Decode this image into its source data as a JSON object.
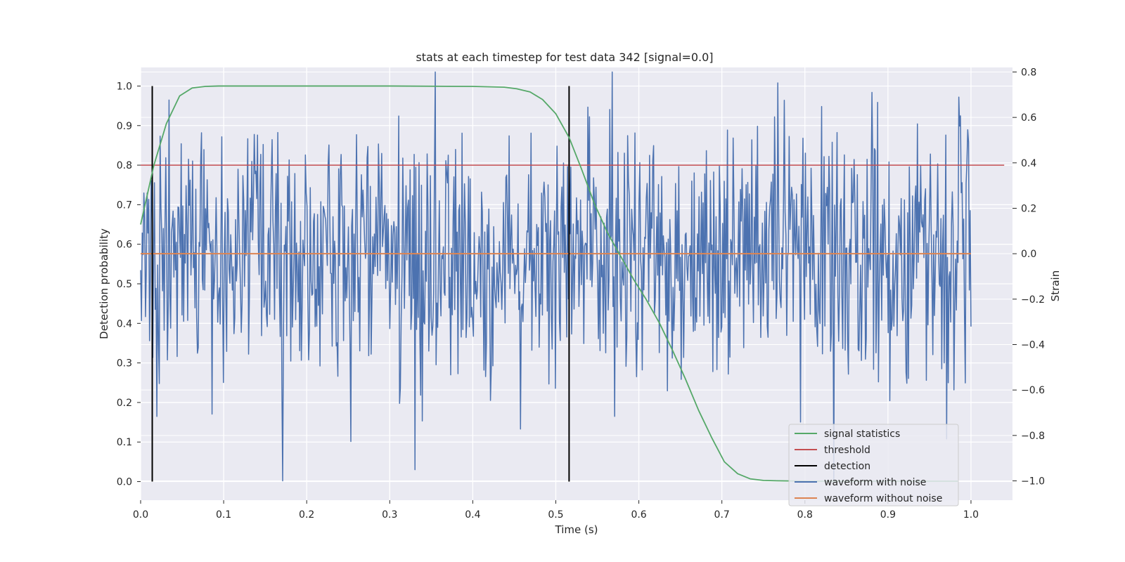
{
  "chart_data": {
    "type": "line",
    "title": "stats at each timestep for test data 342 [signal=0.0]",
    "xlabel": "Time (s)",
    "ylabel_left": "Detection probability",
    "ylabel_right": "Strain",
    "xlim": [
      0.0,
      1.05
    ],
    "ylim_left": [
      -0.047,
      1.047
    ],
    "ylim_right": [
      -1.085,
      0.82
    ],
    "x_ticks": [
      0.0,
      0.1,
      0.2,
      0.3,
      0.4,
      0.5,
      0.6,
      0.7,
      0.8,
      0.9,
      1.0
    ],
    "x_tick_labels": [
      "0.0",
      "0.1",
      "0.2",
      "0.3",
      "0.4",
      "0.5",
      "0.6",
      "0.7",
      "0.8",
      "0.9",
      "1.0"
    ],
    "y_left_ticks": [
      0.0,
      0.1,
      0.2,
      0.3,
      0.4,
      0.5,
      0.6,
      0.7,
      0.8,
      0.9,
      1.0
    ],
    "y_left_tick_labels": [
      "0.0",
      "0.1",
      "0.2",
      "0.3",
      "0.4",
      "0.5",
      "0.6",
      "0.7",
      "0.8",
      "0.9",
      "1.0"
    ],
    "y_right_ticks": [
      -1.0,
      -0.8,
      -0.6,
      -0.4,
      -0.2,
      0.0,
      0.2,
      0.4,
      0.6,
      0.8
    ],
    "y_right_tick_labels": [
      "−1.0",
      "−0.8",
      "−0.6",
      "−0.4",
      "−0.2",
      "0.0",
      "0.2",
      "0.4",
      "0.6",
      "0.8"
    ],
    "grid": true,
    "legend_position": "lower-right",
    "series": [
      {
        "name": "signal statistics",
        "axis": "left",
        "color": "#55a868",
        "x": [
          0.0,
          0.016,
          0.031,
          0.047,
          0.062,
          0.078,
          0.094,
          0.109,
          0.2,
          0.3,
          0.4,
          0.438,
          0.453,
          0.469,
          0.484,
          0.5,
          0.516,
          0.531,
          0.547,
          0.562,
          0.578,
          0.594,
          0.609,
          0.625,
          0.641,
          0.656,
          0.672,
          0.688,
          0.703,
          0.719,
          0.734,
          0.75,
          0.766,
          0.8,
          0.9,
          0.984
        ],
        "y": [
          0.65,
          0.8,
          0.905,
          0.975,
          0.995,
          0.999,
          1.0,
          1.0,
          1.0,
          1.0,
          0.999,
          0.997,
          0.993,
          0.985,
          0.966,
          0.93,
          0.87,
          0.79,
          0.7,
          0.63,
          0.57,
          0.51,
          0.46,
          0.4,
          0.33,
          0.26,
          0.18,
          0.11,
          0.05,
          0.02,
          0.007,
          0.003,
          0.002,
          0.001,
          0.001,
          0.001
        ]
      },
      {
        "name": "threshold",
        "axis": "left",
        "color": "#c44e52",
        "x": [
          0.0,
          1.04
        ],
        "y": [
          0.8,
          0.8
        ]
      },
      {
        "name": "detection",
        "axis": "left",
        "color": "#000000",
        "segments": [
          {
            "x": 0.014,
            "y": [
              0.0,
              1.0
            ]
          },
          {
            "x": 0.516,
            "y": [
              0.0,
              1.0
            ]
          }
        ]
      },
      {
        "name": "waveform with noise",
        "axis": "right",
        "color": "#4c72b0",
        "x_range": [
          0.0,
          1.0
        ],
        "n_points": 1024,
        "y_range_approx": [
          -1.0,
          0.8
        ],
        "mean": 0.0
      },
      {
        "name": "waveform without noise",
        "axis": "right",
        "color": "#dd8452",
        "x": [
          0.0,
          1.0
        ],
        "y": [
          0.0,
          0.0
        ]
      }
    ]
  }
}
